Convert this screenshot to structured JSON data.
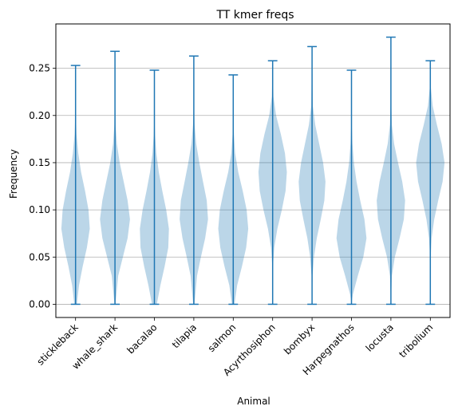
{
  "chart_data": {
    "type": "violin",
    "title": "TT kmer freqs",
    "xlabel": "Animal",
    "ylabel": "Frequency",
    "ylim": [
      -0.014,
      0.297
    ],
    "yticks": [
      "0.00",
      "0.05",
      "0.10",
      "0.15",
      "0.20",
      "0.25"
    ],
    "grid": "horizontal",
    "colors": {
      "line": "#1f77b4",
      "fill": "#1f77b4",
      "grid": "#b0b0b0",
      "frame": "#000000"
    },
    "series": [
      {
        "category": "stickleback",
        "min": 0.0,
        "max": 0.253,
        "mean": 0.083,
        "density": [
          [
            0.0,
            0.08
          ],
          [
            0.02,
            0.22
          ],
          [
            0.04,
            0.45
          ],
          [
            0.06,
            0.72
          ],
          [
            0.08,
            0.9
          ],
          [
            0.1,
            0.82
          ],
          [
            0.12,
            0.6
          ],
          [
            0.14,
            0.35
          ],
          [
            0.16,
            0.17
          ],
          [
            0.18,
            0.06
          ],
          [
            0.2,
            0.02
          ],
          [
            0.253,
            0.0
          ]
        ]
      },
      {
        "category": "whale_shark",
        "min": 0.0,
        "max": 0.268,
        "mean": 0.092,
        "density": [
          [
            0.0,
            0.03
          ],
          [
            0.03,
            0.2
          ],
          [
            0.05,
            0.5
          ],
          [
            0.07,
            0.8
          ],
          [
            0.09,
            0.95
          ],
          [
            0.11,
            0.8
          ],
          [
            0.13,
            0.55
          ],
          [
            0.15,
            0.3
          ],
          [
            0.17,
            0.12
          ],
          [
            0.19,
            0.04
          ],
          [
            0.22,
            0.01
          ],
          [
            0.268,
            0.0
          ]
        ]
      },
      {
        "category": "bacalao",
        "min": 0.0,
        "max": 0.248,
        "mean": 0.072,
        "density": [
          [
            0.0,
            0.15
          ],
          [
            0.02,
            0.38
          ],
          [
            0.04,
            0.65
          ],
          [
            0.06,
            0.88
          ],
          [
            0.08,
            0.92
          ],
          [
            0.1,
            0.75
          ],
          [
            0.12,
            0.5
          ],
          [
            0.14,
            0.28
          ],
          [
            0.16,
            0.12
          ],
          [
            0.18,
            0.04
          ],
          [
            0.2,
            0.01
          ],
          [
            0.248,
            0.0
          ]
        ]
      },
      {
        "category": "tilapia",
        "min": 0.0,
        "max": 0.263,
        "mean": 0.095,
        "density": [
          [
            0.0,
            0.04
          ],
          [
            0.03,
            0.2
          ],
          [
            0.05,
            0.45
          ],
          [
            0.07,
            0.72
          ],
          [
            0.09,
            0.9
          ],
          [
            0.11,
            0.82
          ],
          [
            0.13,
            0.58
          ],
          [
            0.15,
            0.35
          ],
          [
            0.17,
            0.15
          ],
          [
            0.19,
            0.05
          ],
          [
            0.21,
            0.01
          ],
          [
            0.263,
            0.0
          ]
        ]
      },
      {
        "category": "salmon",
        "min": 0.0,
        "max": 0.243,
        "mean": 0.085,
        "density": [
          [
            0.0,
            0.08
          ],
          [
            0.02,
            0.25
          ],
          [
            0.04,
            0.55
          ],
          [
            0.06,
            0.82
          ],
          [
            0.08,
            0.95
          ],
          [
            0.1,
            0.85
          ],
          [
            0.12,
            0.6
          ],
          [
            0.14,
            0.32
          ],
          [
            0.16,
            0.12
          ],
          [
            0.18,
            0.04
          ],
          [
            0.2,
            0.01
          ],
          [
            0.243,
            0.0
          ]
        ]
      },
      {
        "category": "Acyrthosiphon",
        "min": 0.0,
        "max": 0.258,
        "mean": 0.132,
        "density": [
          [
            0.0,
            0.0
          ],
          [
            0.04,
            0.02
          ],
          [
            0.06,
            0.1
          ],
          [
            0.08,
            0.3
          ],
          [
            0.1,
            0.58
          ],
          [
            0.12,
            0.82
          ],
          [
            0.14,
            0.9
          ],
          [
            0.16,
            0.78
          ],
          [
            0.18,
            0.52
          ],
          [
            0.2,
            0.22
          ],
          [
            0.22,
            0.05
          ],
          [
            0.258,
            0.0
          ]
        ]
      },
      {
        "category": "bombyx",
        "min": 0.0,
        "max": 0.273,
        "mean": 0.125,
        "density": [
          [
            0.0,
            0.0
          ],
          [
            0.03,
            0.03
          ],
          [
            0.05,
            0.12
          ],
          [
            0.07,
            0.3
          ],
          [
            0.09,
            0.55
          ],
          [
            0.11,
            0.78
          ],
          [
            0.13,
            0.85
          ],
          [
            0.15,
            0.7
          ],
          [
            0.17,
            0.45
          ],
          [
            0.19,
            0.2
          ],
          [
            0.21,
            0.05
          ],
          [
            0.273,
            0.0
          ]
        ]
      },
      {
        "category": "Harpegnathos",
        "min": 0.0,
        "max": 0.248,
        "mean": 0.075,
        "density": [
          [
            0.0,
            0.0
          ],
          [
            0.01,
            0.08
          ],
          [
            0.03,
            0.4
          ],
          [
            0.05,
            0.75
          ],
          [
            0.07,
            0.95
          ],
          [
            0.09,
            0.82
          ],
          [
            0.11,
            0.55
          ],
          [
            0.13,
            0.32
          ],
          [
            0.15,
            0.15
          ],
          [
            0.17,
            0.06
          ],
          [
            0.19,
            0.02
          ],
          [
            0.248,
            0.0
          ]
        ]
      },
      {
        "category": "locusta",
        "min": 0.0,
        "max": 0.283,
        "mean": 0.105,
        "density": [
          [
            0.0,
            0.0
          ],
          [
            0.03,
            0.06
          ],
          [
            0.05,
            0.25
          ],
          [
            0.07,
            0.55
          ],
          [
            0.09,
            0.82
          ],
          [
            0.11,
            0.9
          ],
          [
            0.13,
            0.72
          ],
          [
            0.15,
            0.45
          ],
          [
            0.17,
            0.2
          ],
          [
            0.19,
            0.06
          ],
          [
            0.22,
            0.01
          ],
          [
            0.283,
            0.0
          ]
        ]
      },
      {
        "category": "tribolium",
        "min": 0.0,
        "max": 0.258,
        "mean": 0.14,
        "density": [
          [
            0.0,
            0.0
          ],
          [
            0.05,
            0.02
          ],
          [
            0.07,
            0.08
          ],
          [
            0.09,
            0.25
          ],
          [
            0.11,
            0.5
          ],
          [
            0.13,
            0.78
          ],
          [
            0.15,
            0.9
          ],
          [
            0.17,
            0.72
          ],
          [
            0.19,
            0.42
          ],
          [
            0.21,
            0.15
          ],
          [
            0.23,
            0.03
          ],
          [
            0.258,
            0.0
          ]
        ]
      }
    ]
  }
}
